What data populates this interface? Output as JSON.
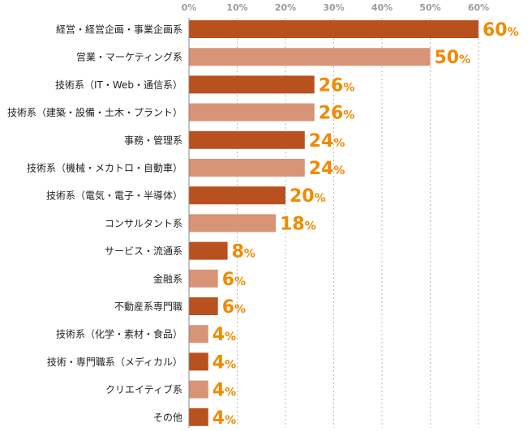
{
  "chart_data": {
    "type": "bar",
    "orientation": "horizontal",
    "title": "",
    "xlabel": "",
    "ylabel": "",
    "xlim": [
      0,
      60
    ],
    "ticks": [
      "0%",
      "10%",
      "20%",
      "30%",
      "40%",
      "50%",
      "60%"
    ],
    "tick_values": [
      0,
      10,
      20,
      30,
      40,
      50,
      60
    ],
    "grid": true,
    "unit": "%",
    "categories": [
      "経営・経営企画・事業企画系",
      "営業・マーケティング系",
      "技術系（IT・Web・通信系）",
      "技術系（建築・設備・土木・プラント）",
      "事務・管理系",
      "技術系（機械・メカトロ・自動車）",
      "技術系（電気・電子・半導体）",
      "コンサルタント系",
      "サービス・流通系",
      "金融系",
      "不動産系専門職",
      "技術系（化学・素材・食品）",
      "技術・専門職系（メディカル）",
      "クリエイティブ系",
      "その他"
    ],
    "values": [
      60,
      50,
      26,
      26,
      24,
      24,
      20,
      18,
      8,
      6,
      6,
      4,
      4,
      4,
      4
    ],
    "colors": {
      "bar_dark": "#b9511e",
      "bar_light": "#d89477",
      "value_label": "#f08a00",
      "grid": "#bbbbbb",
      "axis": "#888888"
    }
  }
}
